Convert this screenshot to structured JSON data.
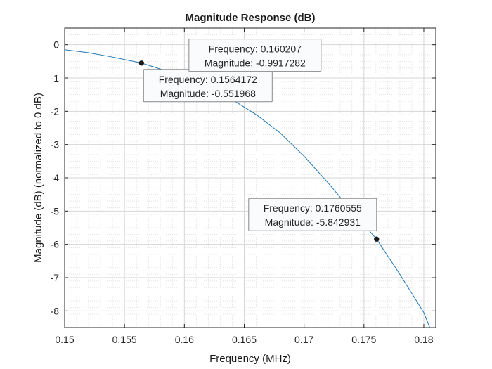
{
  "chart_data": {
    "type": "line",
    "title": "Magnitude Response (dB)",
    "xlabel": "Frequency (MHz)",
    "ylabel": "Magnitude (dB) (normalized to 0 dB)",
    "xlim": [
      0.15,
      0.181
    ],
    "ylim": [
      -8.5,
      0.5
    ],
    "xticks": [
      0.15,
      0.155,
      0.16,
      0.165,
      0.17,
      0.175,
      0.18
    ],
    "xtick_labels": [
      "0.15",
      "0.155",
      "0.16",
      "0.165",
      "0.17",
      "0.175",
      "0.18"
    ],
    "yticks": [
      0,
      -1,
      -2,
      -3,
      -4,
      -5,
      -6,
      -7,
      -8
    ],
    "ytick_labels": [
      "0",
      "-1",
      "-2",
      "-3",
      "-4",
      "-5",
      "-6",
      "-7",
      "-8"
    ],
    "grid": true,
    "minor_grid": true,
    "line_color": "#1f77b4",
    "series": [
      {
        "x": [
          0.15,
          0.152,
          0.154,
          0.156,
          0.1564172,
          0.158,
          0.160207,
          0.162,
          0.164,
          0.166,
          0.168,
          0.17,
          0.172,
          0.174,
          0.1760555,
          0.178,
          0.18,
          0.1805
        ],
        "y": [
          -0.15,
          -0.24,
          -0.37,
          -0.52,
          -0.551968,
          -0.73,
          -0.9917282,
          -1.3,
          -1.65,
          -2.1,
          -2.65,
          -3.35,
          -4.15,
          -5.0,
          -5.842931,
          -6.9,
          -8.05,
          -8.5
        ]
      }
    ],
    "datatips": [
      {
        "x": 0.160207,
        "y": -0.9917282,
        "line1": "Frequency: 0.160207",
        "line2": "Magnitude: -0.9917282"
      },
      {
        "x": 0.1564172,
        "y": -0.551968,
        "line1": "Frequency: 0.1564172",
        "line2": "Magnitude: -0.551968"
      },
      {
        "x": 0.1760555,
        "y": -5.842931,
        "line1": "Frequency: 0.1760555",
        "line2": "Magnitude: -5.842931"
      }
    ]
  }
}
